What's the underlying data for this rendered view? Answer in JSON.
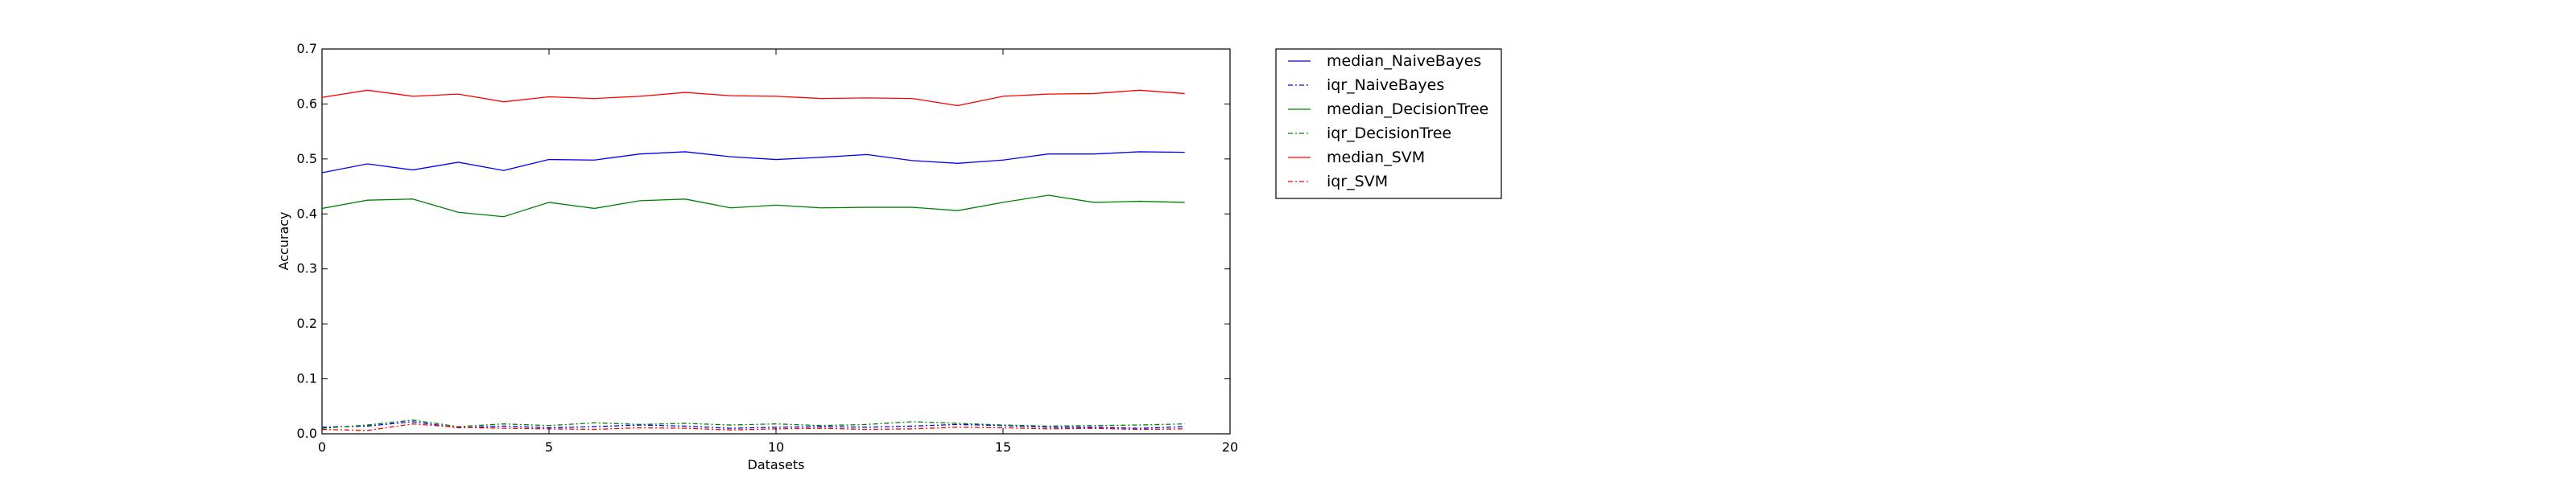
{
  "chart_data": {
    "type": "line",
    "title": "",
    "xlabel": "Datasets",
    "ylabel": "Accuracy",
    "xlim": [
      0,
      20
    ],
    "ylim": [
      0.0,
      0.7
    ],
    "xticks": [
      "0",
      "5",
      "10",
      "15",
      "20"
    ],
    "yticks": [
      "0.0",
      "0.1",
      "0.2",
      "0.3",
      "0.4",
      "0.5",
      "0.6",
      "0.7"
    ],
    "grid": false,
    "legend_position": "outside-right",
    "x": [
      0,
      1,
      2,
      3,
      4,
      5,
      6,
      7,
      8,
      9,
      10,
      11,
      12,
      13,
      14,
      15,
      16,
      17,
      18,
      19
    ],
    "series": [
      {
        "name": "median_NaiveBayes",
        "color": "#0000ff",
        "style": "solid",
        "values": [
          0.475,
          0.491,
          0.48,
          0.494,
          0.479,
          0.499,
          0.498,
          0.509,
          0.513,
          0.504,
          0.499,
          0.503,
          0.508,
          0.497,
          0.492,
          0.498,
          0.509,
          0.509,
          0.513,
          0.512
        ]
      },
      {
        "name": "iqr_NaiveBayes",
        "color": "#0000ff",
        "style": "dashdot",
        "values": [
          0.012,
          0.014,
          0.022,
          0.011,
          0.014,
          0.011,
          0.013,
          0.016,
          0.014,
          0.01,
          0.012,
          0.013,
          0.012,
          0.014,
          0.017,
          0.015,
          0.012,
          0.012,
          0.01,
          0.013
        ]
      },
      {
        "name": "median_DecisionTree",
        "color": "#008000",
        "style": "solid",
        "values": [
          0.41,
          0.425,
          0.427,
          0.403,
          0.395,
          0.421,
          0.41,
          0.424,
          0.427,
          0.411,
          0.416,
          0.411,
          0.412,
          0.412,
          0.406,
          0.421,
          0.434,
          0.421,
          0.423,
          0.421
        ]
      },
      {
        "name": "iqr_DecisionTree",
        "color": "#008000",
        "style": "dashdot",
        "values": [
          0.01,
          0.016,
          0.025,
          0.013,
          0.018,
          0.015,
          0.02,
          0.017,
          0.019,
          0.016,
          0.018,
          0.015,
          0.017,
          0.022,
          0.019,
          0.016,
          0.014,
          0.015,
          0.016,
          0.018
        ]
      },
      {
        "name": "median_SVM",
        "color": "#ff0000",
        "style": "solid",
        "values": [
          0.612,
          0.625,
          0.614,
          0.618,
          0.604,
          0.613,
          0.61,
          0.614,
          0.621,
          0.615,
          0.614,
          0.61,
          0.611,
          0.61,
          0.597,
          0.614,
          0.618,
          0.619,
          0.625,
          0.619
        ]
      },
      {
        "name": "iqr_SVM",
        "color": "#ff0000",
        "style": "dashdot",
        "values": [
          0.008,
          0.006,
          0.018,
          0.012,
          0.01,
          0.009,
          0.008,
          0.011,
          0.01,
          0.007,
          0.009,
          0.01,
          0.008,
          0.009,
          0.012,
          0.011,
          0.009,
          0.01,
          0.008,
          0.009
        ]
      }
    ]
  }
}
